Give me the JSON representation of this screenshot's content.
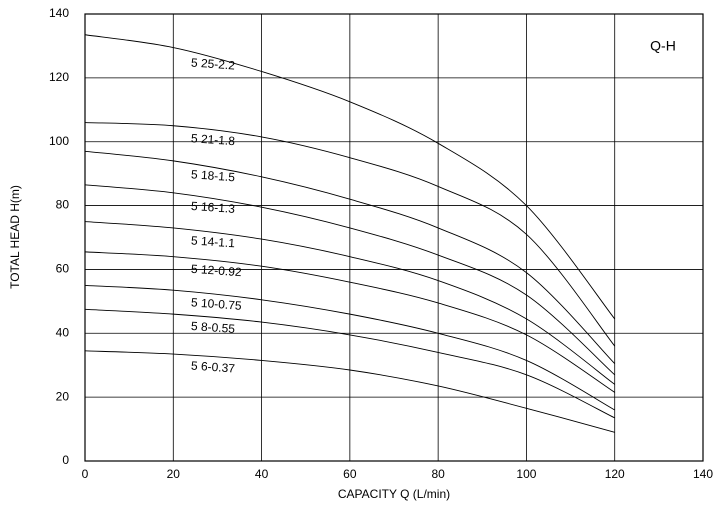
{
  "chart_data": {
    "type": "line",
    "annotation": "Q-H",
    "x_label": "CAPACITY  Q (L/min)",
    "y_label": "TOTAL HEAD  H(m)",
    "x": [
      0,
      20,
      40,
      60,
      80,
      100,
      120
    ],
    "xlim": [
      0,
      140
    ],
    "xticks": [
      0,
      20,
      40,
      60,
      80,
      100,
      120,
      140
    ],
    "ylim": [
      0,
      140
    ],
    "yticks": [
      0,
      20,
      40,
      60,
      80,
      100,
      120,
      140
    ],
    "grid": true,
    "series": [
      {
        "name": "5 25-2.2",
        "color": "#000000",
        "values": [
          133.5,
          129.5,
          122,
          112.5,
          99.5,
          80,
          44.5
        ]
      },
      {
        "name": "5 21-1.8",
        "color": "#000000",
        "values": [
          106,
          105,
          101.5,
          95,
          86,
          71,
          36
        ]
      },
      {
        "name": "5 18-1.5",
        "color": "#000000",
        "values": [
          97,
          94,
          89,
          82,
          73,
          59,
          30.5
        ]
      },
      {
        "name": "5 16-1.3",
        "color": "#000000",
        "values": [
          86.5,
          84,
          79.5,
          73,
          64.5,
          52,
          27
        ]
      },
      {
        "name": "5 14-1.1",
        "color": "#000000",
        "values": [
          75,
          73,
          69.5,
          64,
          56.5,
          44.5,
          24
        ]
      },
      {
        "name": "5 12-0.92",
        "color": "#000000",
        "values": [
          65.5,
          64,
          61,
          56,
          49.5,
          39.5,
          21.5
        ]
      },
      {
        "name": "5 10-0.75",
        "color": "#000000",
        "values": [
          55,
          53.5,
          50.5,
          46,
          40,
          31.5,
          16
        ]
      },
      {
        "name": "5 8-0.55",
        "color": "#000000",
        "values": [
          47.5,
          46,
          43.5,
          39.5,
          34,
          27,
          13.5
        ]
      },
      {
        "name": "5 6-0.37",
        "color": "#000000",
        "values": [
          34.5,
          33.5,
          31.5,
          28.5,
          23.5,
          16.5,
          9
        ]
      }
    ]
  }
}
